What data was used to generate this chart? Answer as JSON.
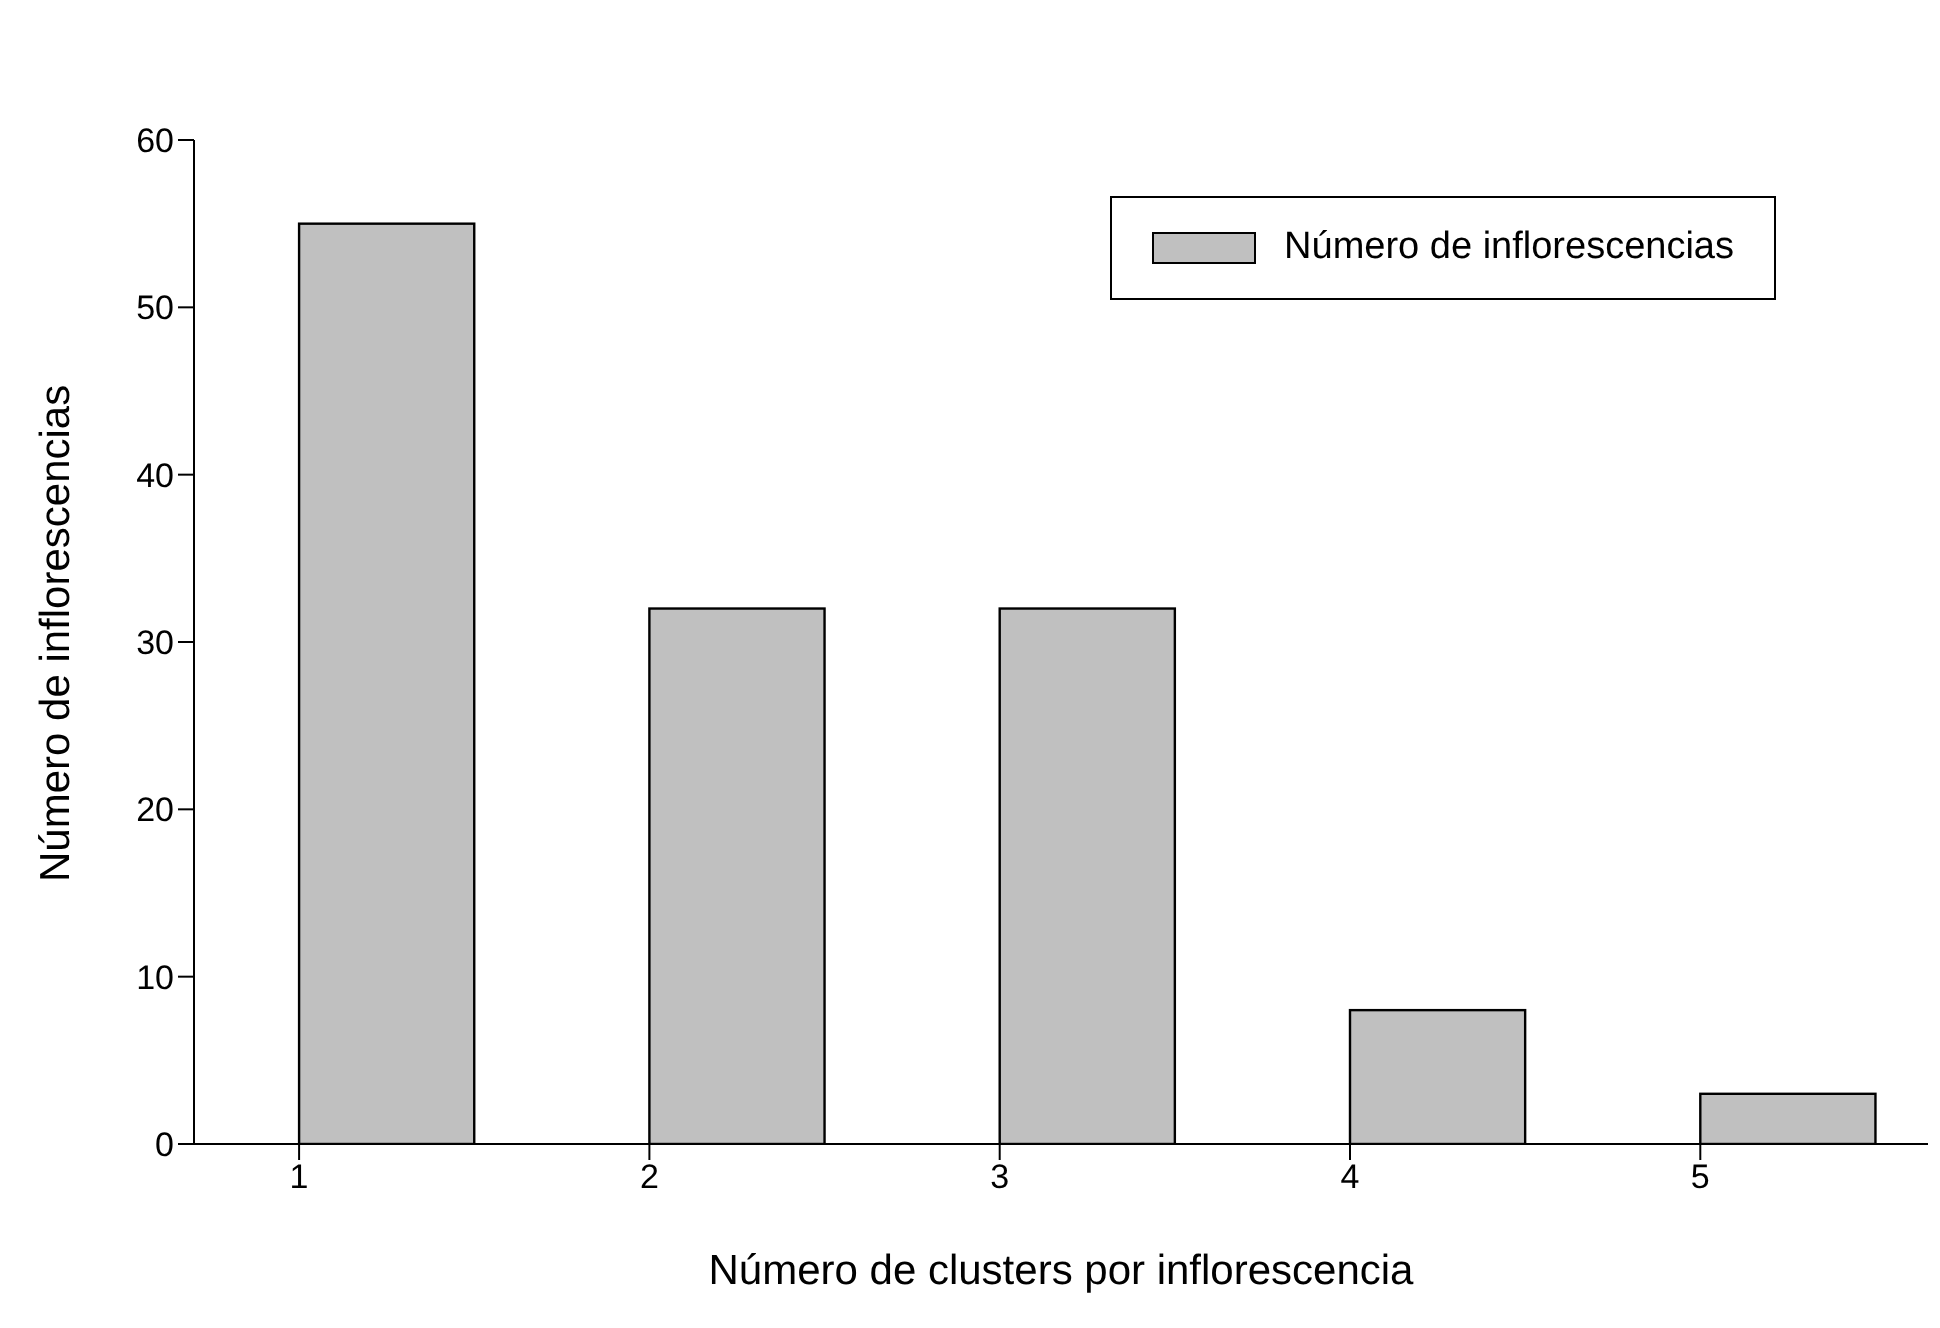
{
  "chart_data": {
    "type": "bar",
    "xlabel": "Número de clusters por inflorescencia",
    "ylabel": "Número de inflorescencias",
    "x": [
      1.25,
      2.25,
      3.25,
      4.25,
      5.25
    ],
    "series": [
      {
        "name": "Número de inflorescencias",
        "color": "#c0c0c0",
        "values": [
          55,
          32,
          32,
          8,
          3
        ]
      }
    ],
    "xlim": [
      0.7,
      5.65
    ],
    "xticks": [
      1,
      2,
      3,
      4,
      5
    ],
    "ylim": [
      0,
      60
    ],
    "yticks": [
      0,
      10,
      20,
      30,
      40,
      50,
      60
    ],
    "legend": "top right"
  }
}
